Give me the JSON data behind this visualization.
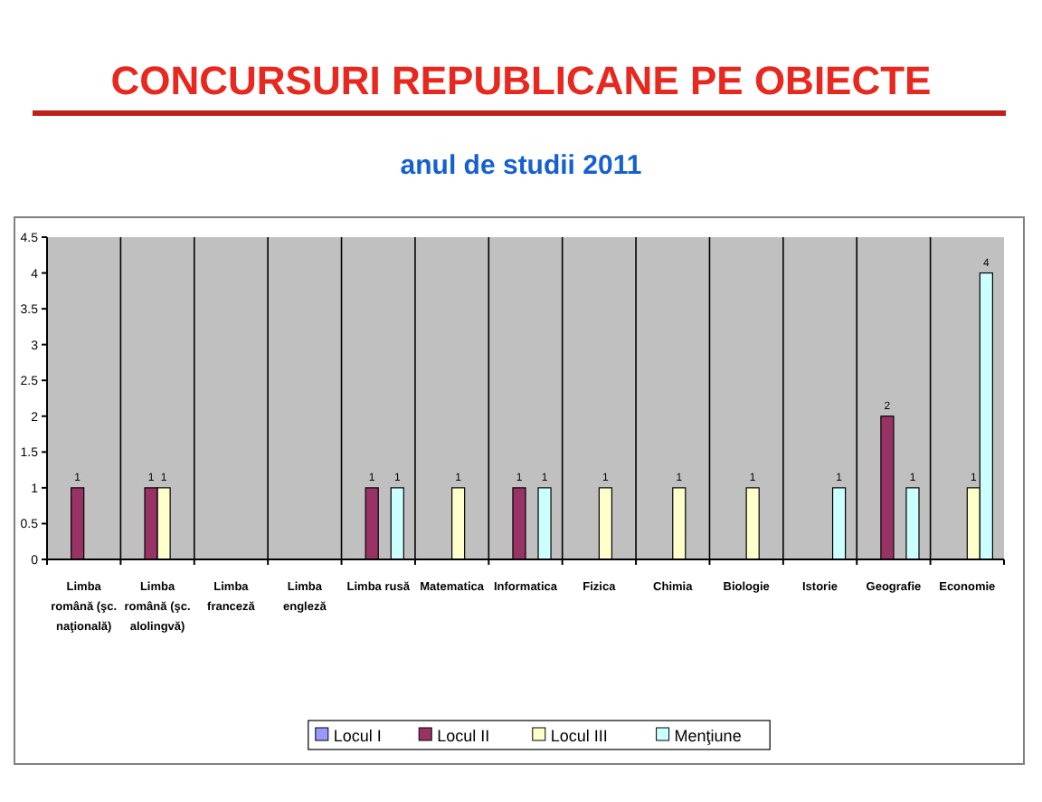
{
  "chart_data": {
    "type": "bar",
    "title": "CONCURSURI REPUBLICANE PE OBIECTE",
    "subtitle": "anul de studii 2011",
    "categories": [
      "Limba română (şc. naţională)",
      "Limba română (şc. alolingvă)",
      "Limba franceză",
      "Limba engleză",
      "Limba rusă",
      "Matematica",
      "Informatica",
      "Fizica",
      "Chimia",
      "Biologie",
      "Istorie",
      "Geografie",
      "Economie"
    ],
    "series": [
      {
        "name": "Locul I",
        "color": "#9999ff",
        "values": [
          null,
          null,
          null,
          null,
          null,
          null,
          null,
          null,
          null,
          null,
          null,
          null,
          null
        ]
      },
      {
        "name": "Locul II",
        "color": "#993366",
        "values": [
          1,
          1,
          null,
          null,
          1,
          null,
          1,
          null,
          null,
          null,
          null,
          2,
          null
        ]
      },
      {
        "name": "Locul III",
        "color": "#ffffcc",
        "values": [
          null,
          1,
          null,
          null,
          null,
          1,
          null,
          1,
          1,
          1,
          null,
          null,
          1
        ]
      },
      {
        "name": "Menţiune",
        "color": "#ccffff",
        "values": [
          null,
          null,
          null,
          null,
          1,
          null,
          1,
          null,
          null,
          null,
          1,
          1,
          4
        ]
      }
    ],
    "ylim": [
      0,
      4.5
    ],
    "yticks": [
      0,
      0.5,
      1,
      1.5,
      2,
      2.5,
      3,
      3.5,
      4,
      4.5
    ],
    "grid": "x",
    "legend": "bottom",
    "data_labels": true
  }
}
